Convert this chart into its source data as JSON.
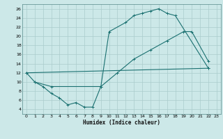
{
  "bg_color": "#cce8e8",
  "grid_color": "#aacccc",
  "line_color": "#1a7070",
  "xlabel": "Humidex (Indice chaleur)",
  "xlim": [
    -0.5,
    23.5
  ],
  "ylim": [
    3,
    27
  ],
  "xticks": [
    0,
    1,
    2,
    3,
    4,
    5,
    6,
    7,
    8,
    9,
    10,
    11,
    12,
    13,
    14,
    15,
    16,
    17,
    18,
    19,
    20,
    21,
    22,
    23
  ],
  "yticks": [
    4,
    6,
    8,
    10,
    12,
    14,
    16,
    18,
    20,
    22,
    24,
    26
  ],
  "line1_x": [
    0,
    1,
    2,
    3,
    4,
    5,
    6,
    7,
    8,
    9,
    10,
    12,
    13,
    14,
    15,
    16,
    17,
    18,
    22
  ],
  "line1_y": [
    12,
    10,
    9,
    7.5,
    6.5,
    5.0,
    5.5,
    4.5,
    4.5,
    9.0,
    21,
    23,
    24.5,
    25,
    25.5,
    26,
    25,
    24.5,
    13
  ],
  "line2_x": [
    0,
    22
  ],
  "line2_y": [
    12,
    13
  ],
  "line3_x": [
    1,
    3,
    9,
    11,
    13,
    15,
    17,
    19,
    20,
    22
  ],
  "line3_y": [
    10,
    9,
    9,
    12,
    15,
    17,
    19,
    21,
    21,
    14.5
  ],
  "linewidth": 0.8,
  "marker_size": 2.5
}
